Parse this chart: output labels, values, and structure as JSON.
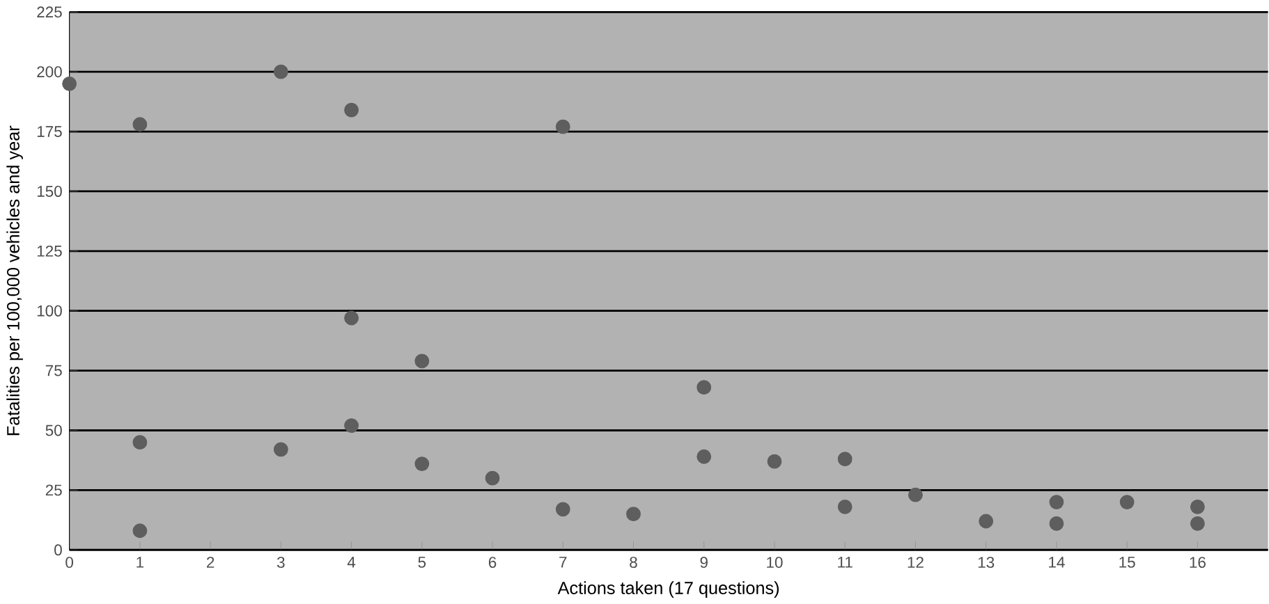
{
  "chart_data": {
    "type": "scatter",
    "xlabel": "Actions taken (17 questions)",
    "ylabel": "Fatalities per 100,000 vehicles and year",
    "xlim": [
      0,
      17
    ],
    "xticks": [
      0,
      1,
      2,
      3,
      4,
      5,
      6,
      7,
      8,
      9,
      10,
      11,
      12,
      13,
      14,
      15,
      16
    ],
    "ylim": [
      0,
      225
    ],
    "yticks": [
      0,
      25,
      50,
      75,
      100,
      125,
      150,
      175,
      200,
      225
    ],
    "grid": "y",
    "marker": "circle",
    "series": [
      {
        "color": "#5e5e5e",
        "x": [
          0,
          1,
          3,
          4,
          7,
          4,
          5,
          9,
          1,
          3,
          4,
          5,
          6,
          7,
          8,
          9,
          10,
          11,
          11,
          12,
          13,
          14,
          14,
          15,
          16,
          16,
          1
        ],
        "values": [
          195,
          178,
          200,
          184,
          177,
          97,
          79,
          68,
          45,
          42,
          52,
          36,
          30,
          17,
          15,
          39,
          37,
          38,
          18,
          23,
          12,
          20,
          11,
          20,
          18,
          11,
          8
        ]
      }
    ]
  }
}
